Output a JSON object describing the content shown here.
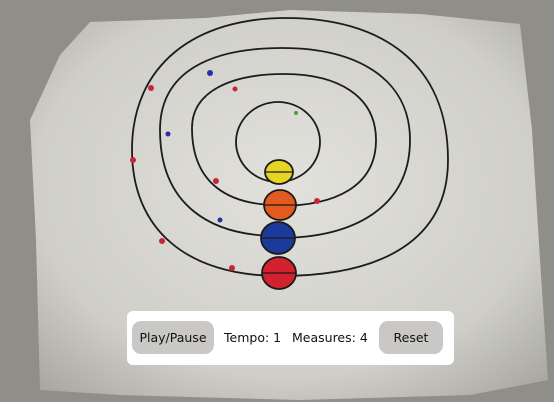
{
  "toolbar": {
    "play_pause_label": "Play/Pause",
    "tempo_label": "Tempo:",
    "tempo_value": "1",
    "measures_label": "Measures:",
    "measures_value": "4",
    "reset_label": "Reset"
  },
  "colors": {
    "background": "#8e8d88",
    "paper": "#d6d5d0",
    "ink": "#1a1a1a",
    "yellow_planet": "#e7d523",
    "orange_planet": "#e25a1f",
    "blue_planet": "#1c3a9a",
    "red_planet": "#d42130"
  }
}
